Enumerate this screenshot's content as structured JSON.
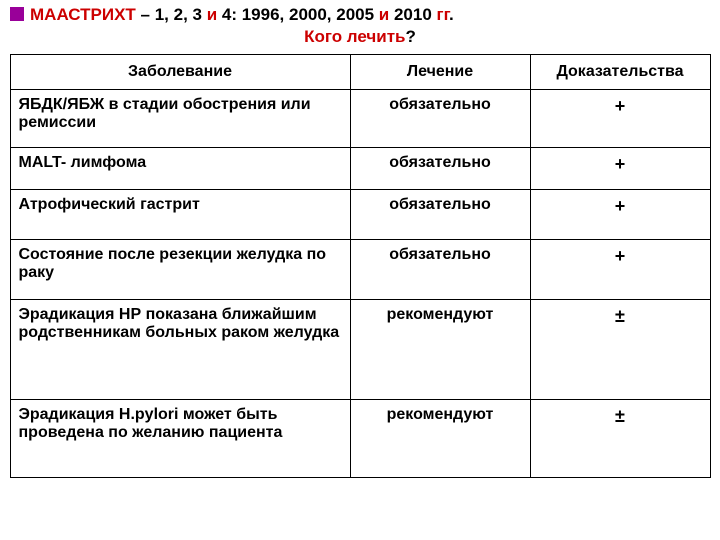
{
  "header": {
    "line1_parts": {
      "a": "МААСТРИХТ",
      "b": " – 1, 2, 3 ",
      "c": "и",
      "d": " 4: 1996, 2000, 2005 ",
      "e": "и",
      "f": " 2010 ",
      "g": "гг",
      "h": "."
    },
    "line2_parts": {
      "a": "Кого лечить",
      "b": "?"
    }
  },
  "table": {
    "headers": {
      "disease": "Заболевание",
      "treatment": "Лечение",
      "evidence": "Доказательства"
    },
    "rows": [
      {
        "disease_prefix": "ЯБДК/ЯБЖ ",
        "disease_rest": "в стадии обострения или ремиссии",
        "treatment": "обязательно",
        "evidence": "+"
      },
      {
        "disease_prefix": "MALT-  ",
        "disease_rest": "лимфома",
        "treatment": "обязательно",
        "evidence": "+"
      },
      {
        "disease_prefix": "",
        "disease_rest": "Атрофический гастрит",
        "treatment": "обязательно",
        "evidence": "+"
      },
      {
        "disease_prefix": "",
        "disease_rest": "Состояние после резекции желудка по раку",
        "treatment": "обязательно",
        "evidence": "+"
      },
      {
        "disease_prefix": "",
        "disease_rest": "Эрадикация НР показана ближайшим  родственникам больных раком желудка",
        "treatment": "рекомендуют",
        "evidence": "±"
      },
      {
        "disease_prefix": "Эрадикация Н.pylori ",
        "disease_rest": "может быть проведена по желанию пациента",
        "treatment": "рекомендуют",
        "evidence": "±"
      }
    ]
  },
  "colors": {
    "bullet": "#990099",
    "title_red": "#cc0000",
    "border": "#000000",
    "text": "#000000"
  }
}
